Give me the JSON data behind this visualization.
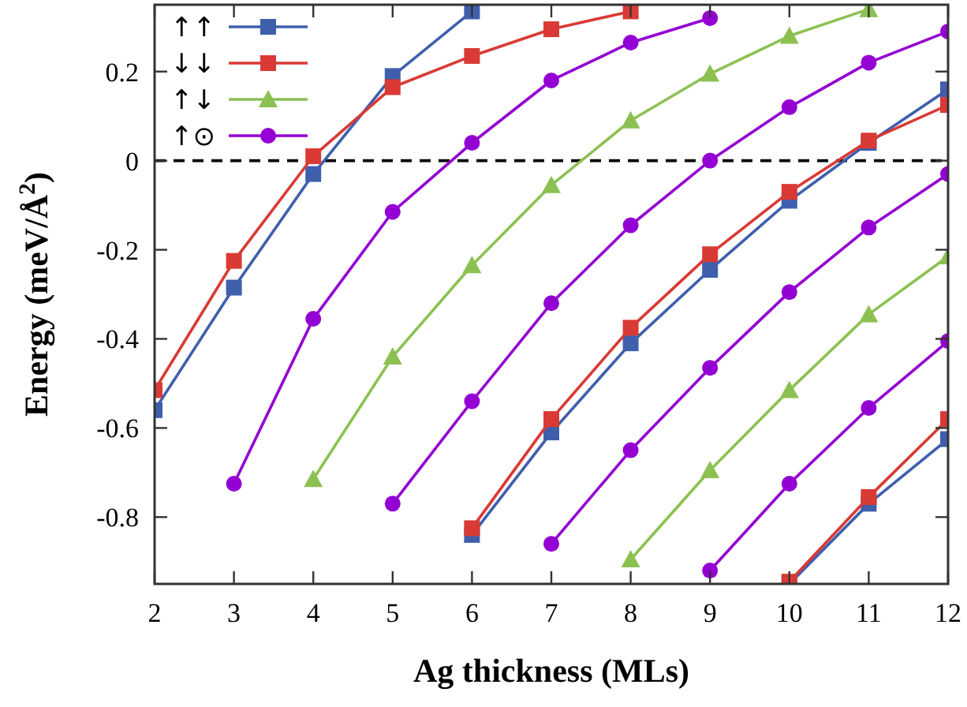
{
  "chart_data": {
    "type": "line",
    "xlabel": "Ag thickness (MLs)",
    "ylabel": "Energy (meV/Å$^{2}$)",
    "xlim": [
      2,
      12
    ],
    "ylim": [
      -0.95,
      0.35
    ],
    "xticks": [
      2,
      3,
      4,
      5,
      6,
      7,
      8,
      9,
      10,
      11,
      12
    ],
    "yticks": [
      -0.8,
      -0.6,
      -0.4,
      -0.2,
      0,
      0.2
    ],
    "grid": false,
    "legend": "top left",
    "line_style": "solid",
    "ref_lines": [
      {
        "axis": "y",
        "value": 0,
        "color": "#000000",
        "line_style": "dashed"
      }
    ],
    "series": [
      {
        "name": "↑↑",
        "color": "#3f5fad",
        "marker": "square",
        "x": [
          2,
          3,
          4,
          5,
          6
        ],
        "values": [
          -0.56,
          -0.285,
          -0.03,
          0.19,
          0.335
        ]
      },
      {
        "name": "↓↓",
        "color": "#d93a35",
        "marker": "square",
        "x": [
          2,
          3,
          4,
          5,
          6,
          7,
          8
        ],
        "values": [
          -0.515,
          -0.225,
          0.01,
          0.165,
          0.235,
          0.295,
          0.335
        ]
      },
      {
        "name": "↑↓",
        "color": "#8cc152",
        "marker": "triangle",
        "x": [
          4,
          5,
          6,
          7,
          8,
          9,
          10,
          11
        ],
        "values": [
          -0.715,
          -0.44,
          -0.235,
          -0.055,
          0.09,
          0.195,
          0.28,
          0.34
        ]
      },
      {
        "name": "↑⊙",
        "color": "#9400d3",
        "marker": "circle",
        "x": [
          3,
          4,
          5,
          6,
          7,
          8,
          9
        ],
        "values": [
          -0.725,
          -0.355,
          -0.115,
          0.04,
          0.18,
          0.265,
          0.32
        ]
      },
      {
        "color": "#9400d3",
        "marker": "circle",
        "x": [
          5,
          6,
          7,
          8,
          9,
          10,
          11,
          12
        ],
        "values": [
          -0.77,
          -0.54,
          -0.32,
          -0.145,
          0,
          0.12,
          0.22,
          0.29
        ]
      },
      {
        "color": "#3f5fad",
        "marker": "square",
        "x": [
          6,
          7,
          8,
          9,
          10,
          11,
          12
        ],
        "values": [
          -0.84,
          -0.61,
          -0.41,
          -0.245,
          -0.09,
          0.04,
          0.16
        ]
      },
      {
        "color": "#d93a35",
        "marker": "square",
        "x": [
          6,
          7,
          8,
          9,
          10,
          11,
          12
        ],
        "values": [
          -0.825,
          -0.58,
          -0.375,
          -0.21,
          -0.07,
          0.045,
          0.125
        ]
      },
      {
        "color": "#8cc152",
        "marker": "triangle",
        "x": [
          8,
          9,
          10,
          11,
          12
        ],
        "values": [
          -0.895,
          -0.695,
          -0.515,
          -0.345,
          -0.215
        ]
      },
      {
        "color": "#9400d3",
        "marker": "circle",
        "x": [
          7,
          8,
          9,
          10,
          11,
          12
        ],
        "values": [
          -0.86,
          -0.65,
          -0.465,
          -0.295,
          -0.15,
          -0.03
        ]
      },
      {
        "color": "#9400d3",
        "marker": "circle",
        "x": [
          9,
          10,
          11,
          12
        ],
        "values": [
          -0.92,
          -0.725,
          -0.555,
          -0.405
        ]
      },
      {
        "color": "#3f5fad",
        "marker": "square",
        "x": [
          10,
          11,
          12
        ],
        "values": [
          -0.95,
          -0.77,
          -0.625
        ]
      },
      {
        "color": "#d93a35",
        "marker": "square",
        "x": [
          10,
          11,
          12
        ],
        "values": [
          -0.945,
          -0.755,
          -0.58
        ]
      }
    ]
  }
}
